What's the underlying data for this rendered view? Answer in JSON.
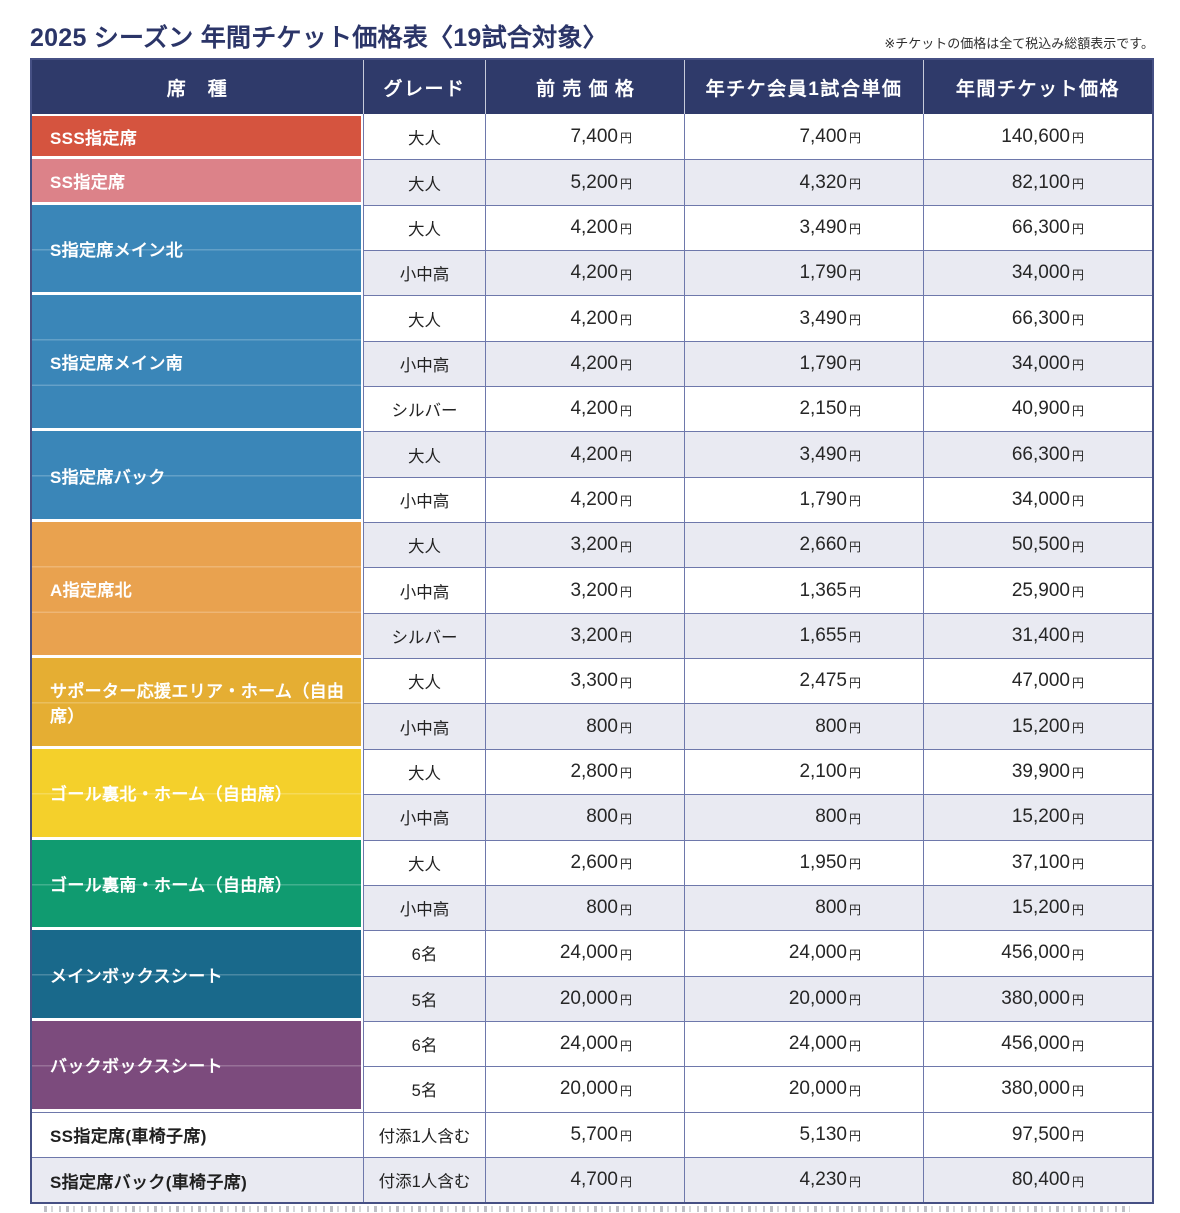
{
  "title": "2025 シーズン 年間チケット価格表〈19試合対象〉",
  "tax_note": "※チケットの価格は全て税込み総額表示です。",
  "colors": {
    "header_bg": "#2f3a6a",
    "title_text": "#2b3568",
    "grid_line": "#6e78ab",
    "row_alt": "#e9eaf2"
  },
  "table": {
    "columns": [
      "席　種",
      "グレード",
      "前売価格",
      "年チケ会員1試合単価",
      "年間チケット価格"
    ],
    "currency": "円",
    "groups": [
      {
        "seat": "SSS指定席",
        "color": "#d5543f",
        "rows": [
          {
            "grade": "大人",
            "advance": "7,400",
            "per_game": "7,400",
            "annual": "140,600",
            "bg": "white"
          }
        ]
      },
      {
        "seat": "SS指定席",
        "color": "#dc8289",
        "rows": [
          {
            "grade": "大人",
            "advance": "5,200",
            "per_game": "4,320",
            "annual": "82,100",
            "bg": "alt"
          }
        ]
      },
      {
        "seat": "S指定席メイン北",
        "color": "#3a86b8",
        "rows": [
          {
            "grade": "大人",
            "advance": "4,200",
            "per_game": "3,490",
            "annual": "66,300",
            "bg": "white"
          },
          {
            "grade": "小中高",
            "advance": "4,200",
            "per_game": "1,790",
            "annual": "34,000",
            "bg": "alt"
          }
        ]
      },
      {
        "seat": "S指定席メイン南",
        "color": "#3a86b8",
        "rows": [
          {
            "grade": "大人",
            "advance": "4,200",
            "per_game": "3,490",
            "annual": "66,300",
            "bg": "white"
          },
          {
            "grade": "小中高",
            "advance": "4,200",
            "per_game": "1,790",
            "annual": "34,000",
            "bg": "alt"
          },
          {
            "grade": "シルバー",
            "advance": "4,200",
            "per_game": "2,150",
            "annual": "40,900",
            "bg": "white"
          }
        ]
      },
      {
        "seat": "S指定席バック",
        "color": "#3a86b8",
        "rows": [
          {
            "grade": "大人",
            "advance": "4,200",
            "per_game": "3,490",
            "annual": "66,300",
            "bg": "alt"
          },
          {
            "grade": "小中高",
            "advance": "4,200",
            "per_game": "1,790",
            "annual": "34,000",
            "bg": "white"
          }
        ]
      },
      {
        "seat": "A指定席北",
        "color": "#e9a24f",
        "rows": [
          {
            "grade": "大人",
            "advance": "3,200",
            "per_game": "2,660",
            "annual": "50,500",
            "bg": "alt"
          },
          {
            "grade": "小中高",
            "advance": "3,200",
            "per_game": "1,365",
            "annual": "25,900",
            "bg": "white"
          },
          {
            "grade": "シルバー",
            "advance": "3,200",
            "per_game": "1,655",
            "annual": "31,400",
            "bg": "alt"
          }
        ]
      },
      {
        "seat": "サポーター応援エリア・ホーム（自由席）",
        "color": "#e5ae33",
        "rows": [
          {
            "grade": "大人",
            "advance": "3,300",
            "per_game": "2,475",
            "annual": "47,000",
            "bg": "white"
          },
          {
            "grade": "小中高",
            "advance": "800",
            "per_game": "800",
            "annual": "15,200",
            "bg": "alt"
          }
        ]
      },
      {
        "seat": "ゴール裏北・ホーム（自由席）",
        "color": "#f4d02b",
        "rows": [
          {
            "grade": "大人",
            "advance": "2,800",
            "per_game": "2,100",
            "annual": "39,900",
            "bg": "white"
          },
          {
            "grade": "小中高",
            "advance": "800",
            "per_game": "800",
            "annual": "15,200",
            "bg": "alt"
          }
        ]
      },
      {
        "seat": "ゴール裏南・ホーム（自由席）",
        "color": "#109b70",
        "rows": [
          {
            "grade": "大人",
            "advance": "2,600",
            "per_game": "1,950",
            "annual": "37,100",
            "bg": "white"
          },
          {
            "grade": "小中高",
            "advance": "800",
            "per_game": "800",
            "annual": "15,200",
            "bg": "alt"
          }
        ]
      },
      {
        "seat": "メインボックスシート",
        "color": "#19698b",
        "rows": [
          {
            "grade": "6名",
            "advance": "24,000",
            "per_game": "24,000",
            "annual": "456,000",
            "bg": "white"
          },
          {
            "grade": "5名",
            "advance": "20,000",
            "per_game": "20,000",
            "annual": "380,000",
            "bg": "alt"
          }
        ]
      },
      {
        "seat": "バックボックスシート",
        "color": "#7c4b7d",
        "rows": [
          {
            "grade": "6名",
            "advance": "24,000",
            "per_game": "24,000",
            "annual": "456,000",
            "bg": "white"
          },
          {
            "grade": "5名",
            "advance": "20,000",
            "per_game": "20,000",
            "annual": "380,000",
            "bg": "white"
          }
        ]
      },
      {
        "seat": "SS指定席(車椅子席)",
        "color": null,
        "rows": [
          {
            "grade": "付添1人含む",
            "advance": "5,700",
            "per_game": "5,130",
            "annual": "97,500",
            "bg": "white"
          }
        ]
      },
      {
        "seat": "S指定席バック(車椅子席)",
        "color": null,
        "rows": [
          {
            "grade": "付添1人含む",
            "advance": "4,700",
            "per_game": "4,230",
            "annual": "80,400",
            "bg": "alt"
          }
        ]
      }
    ]
  }
}
